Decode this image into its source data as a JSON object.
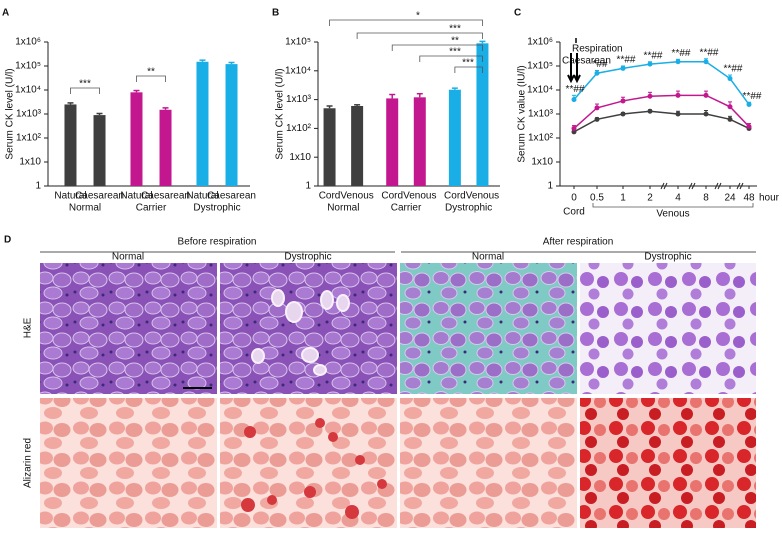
{
  "chart_data": [
    {
      "type": "bar",
      "panel": "A",
      "ylabel": "Serum CK level (U/l)",
      "categories": [
        "Natural",
        "Caesarean",
        "Natural",
        "Caesarean",
        "Natural",
        "Caesarean"
      ],
      "groups": [
        "Normal",
        "Carrier",
        "Dystrophic"
      ],
      "values": [
        2500,
        900,
        8000,
        1500,
        150000,
        120000
      ],
      "errors": [
        400,
        150,
        1500,
        300,
        25000,
        20000
      ],
      "colors": [
        "#3f3f3f",
        "#3f3f3f",
        "#c2178f",
        "#c2178f",
        "#1aaee6",
        "#1aaee6"
      ],
      "ylog": true,
      "ylim": [
        1,
        1000000
      ],
      "yticks": [
        1,
        {
          "value": 10,
          "label": "1x10"
        },
        {
          "value": 100,
          "label": "1x10²"
        },
        {
          "value": 1000,
          "label": "1x10³"
        },
        {
          "value": 10000,
          "label": "1x10⁴"
        },
        {
          "value": 100000,
          "label": "1x10⁵"
        },
        {
          "value": 1000000,
          "label": "1x10⁶"
        }
      ],
      "annotations": [
        "***",
        "**"
      ]
    },
    {
      "type": "bar",
      "panel": "B",
      "ylabel": "Serum CK level (U/l)",
      "categories": [
        "Cord",
        "Venous",
        "Cord",
        "Venous",
        "Cord",
        "Venous"
      ],
      "groups": [
        "Normal",
        "Carrier",
        "Dystrophic"
      ],
      "values": [
        500,
        600,
        1100,
        1200,
        2200,
        90000
      ],
      "errors": [
        100,
        60,
        400,
        400,
        300,
        15000
      ],
      "colors": [
        "#3f3f3f",
        "#3f3f3f",
        "#c2178f",
        "#c2178f",
        "#1aaee6",
        "#1aaee6"
      ],
      "ylog": true,
      "ylim": [
        1,
        100000
      ],
      "yticks": [
        1,
        {
          "value": 10,
          "label": "1x10"
        },
        {
          "value": 100,
          "label": "1x10²"
        },
        {
          "value": 1000,
          "label": "1x10³"
        },
        {
          "value": 10000,
          "label": "1x10⁴"
        },
        {
          "value": 100000,
          "label": "1x10⁵"
        }
      ],
      "annotations": [
        "*",
        "***",
        "**",
        "***",
        "***"
      ]
    },
    {
      "type": "line",
      "panel": "C",
      "ylabel": "Serum CK value  (IU/l)",
      "xlabel": "hour",
      "x": [
        "0",
        "0.5",
        "1",
        "2",
        "4",
        "8",
        "24",
        "48"
      ],
      "groups": [
        "Cord",
        "Venous"
      ],
      "series": [
        {
          "color": "#3f3f3f",
          "values": [
            180,
            600,
            1000,
            1300,
            1000,
            1000,
            600,
            250
          ],
          "errors": [
            50,
            100,
            150,
            200,
            300,
            400,
            200,
            60
          ]
        },
        {
          "color": "#c2178f",
          "values": [
            250,
            1800,
            3500,
            5500,
            6000,
            6000,
            2000,
            300
          ],
          "errors": [
            80,
            800,
            1500,
            2500,
            3000,
            3000,
            1200,
            100
          ]
        },
        {
          "color": "#1aaee6",
          "values": [
            4000,
            50000,
            80000,
            120000,
            150000,
            150000,
            30000,
            2500
          ],
          "errors": [
            2000,
            15000,
            20000,
            30000,
            40000,
            50000,
            12000,
            600
          ]
        }
      ],
      "point_labels": [
        "**##",
        "*##",
        "**##",
        "**##",
        "**##",
        "**##",
        "**##",
        "**##"
      ],
      "annotations": [
        "Respiration",
        "Caesarean"
      ],
      "ylog": true,
      "ylim": [
        1,
        1000000
      ],
      "yticks": [
        1,
        {
          "value": 10,
          "label": "1x10"
        },
        {
          "value": 100,
          "label": "1x10²"
        },
        {
          "value": 1000,
          "label": "1x10³"
        },
        {
          "value": 10000,
          "label": "1x10⁴"
        },
        {
          "value": 100000,
          "label": "1x10⁵"
        },
        {
          "value": 1000000,
          "label": "1x10⁶"
        }
      ]
    }
  ],
  "panel_d": {
    "label": "D",
    "columns": [
      {
        "title": "Before respiration",
        "subcolumns": [
          "Normal",
          "Dystrophic"
        ]
      },
      {
        "title": "After respiration",
        "subcolumns": [
          "Normal",
          "Dystrophic"
        ]
      }
    ],
    "rows": [
      "H&E",
      "Alizarin red"
    ]
  }
}
